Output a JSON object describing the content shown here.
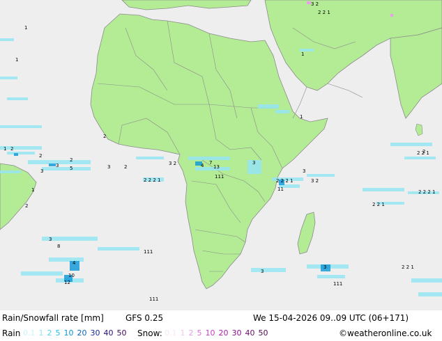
{
  "title": "Rain/Snowfall rate [mm]",
  "model": "GFS 0.25",
  "valid_time": "We 15-04-2026 09..09 UTC (06+171)",
  "rain_label": "Rain",
  "rain_scale": [
    {
      "label": "0.1",
      "color": "#c8f4fa"
    },
    {
      "label": "1",
      "color": "#96e6f5"
    },
    {
      "label": "2",
      "color": "#50d2f0"
    },
    {
      "label": "5",
      "color": "#20c0ec"
    },
    {
      "label": "10",
      "color": "#0a96d8"
    },
    {
      "label": "20",
      "color": "#0a64b4"
    },
    {
      "label": "30",
      "color": "#142896"
    },
    {
      "label": "40",
      "color": "#280a78"
    },
    {
      "label": "50",
      "color": "#3c0a5a"
    }
  ],
  "snow_label": "Snow:",
  "snow_scale": [
    {
      "label": "0.1",
      "color": "#f8e6f8"
    },
    {
      "label": "1",
      "color": "#f0c8f0"
    },
    {
      "label": "2",
      "color": "#e6a0e6"
    },
    {
      "label": "5",
      "color": "#dc6edc"
    },
    {
      "label": "10",
      "color": "#c83cc8"
    },
    {
      "label": "20",
      "color": "#aa1eaa"
    },
    {
      "label": "30",
      "color": "#8c0a8c"
    },
    {
      "label": "40",
      "color": "#6e0a6e"
    },
    {
      "label": "50",
      "color": "#500a50"
    }
  ],
  "credit": "©weatheronline.co.uk",
  "colors": {
    "sea": "#eeeeee",
    "land": "#b4ec96",
    "border": "#8a8a8a",
    "rain_light": "#96e6f5",
    "rain_heavy": "#0a96d8",
    "snow": "#e6a0e6"
  },
  "map_labels": [
    "1",
    "2",
    "3",
    "4",
    "5",
    "7",
    "8",
    "10",
    "11",
    "12",
    "13",
    "111",
    "2 2 1",
    "3 2",
    "2 2 2 1"
  ]
}
